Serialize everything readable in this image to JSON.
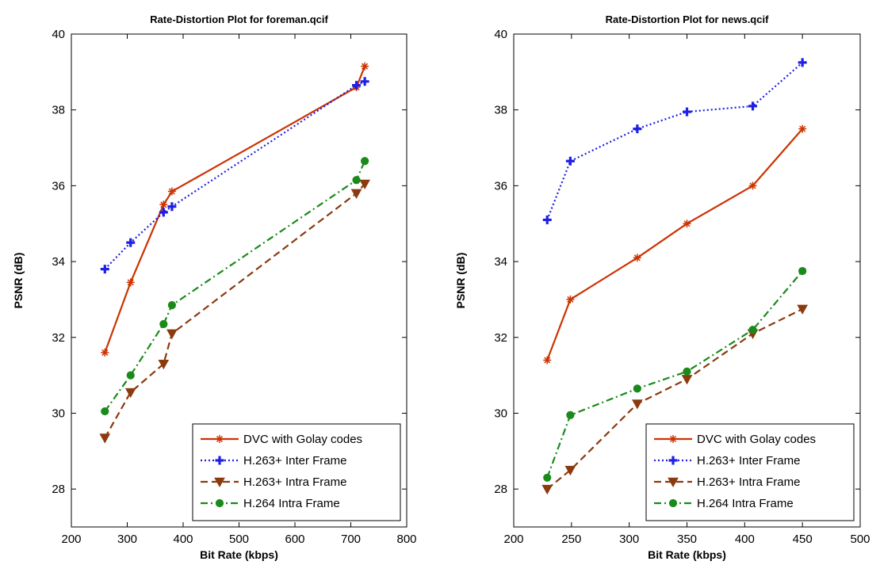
{
  "chart_data": [
    {
      "type": "line",
      "title": "Rate-Distortion Plot for foreman.qcif",
      "xlabel": "Bit Rate (kbps)",
      "ylabel": "PSNR (dB)",
      "xlim": [
        200,
        800
      ],
      "ylim": [
        27,
        40
      ],
      "xticks": [
        200,
        300,
        400,
        500,
        600,
        700,
        800
      ],
      "yticks": [
        28,
        30,
        32,
        34,
        36,
        38,
        40
      ],
      "legend_position": "bottom-right",
      "grid": false,
      "series": [
        {
          "name": "DVC with Golay codes",
          "color": "#cc3300",
          "dash": "solid",
          "marker": "star",
          "x": [
            260,
            306,
            365,
            380,
            710,
            725
          ],
          "y": [
            31.6,
            33.45,
            35.5,
            35.85,
            38.6,
            39.15
          ]
        },
        {
          "name": "H.263+ Inter Frame",
          "color": "#1f1fe6",
          "dash": "dotted",
          "marker": "plus",
          "x": [
            260,
            306,
            365,
            380,
            710,
            725
          ],
          "y": [
            33.8,
            34.5,
            35.3,
            35.45,
            38.65,
            38.75
          ]
        },
        {
          "name": "H.263+ Intra Frame",
          "color": "#8b3a0e",
          "dash": "dashed",
          "marker": "triangle-down",
          "x": [
            260,
            306,
            365,
            380,
            710,
            725
          ],
          "y": [
            29.35,
            30.55,
            31.3,
            32.1,
            35.8,
            36.05
          ]
        },
        {
          "name": "H.264  Intra Frame",
          "color": "#1a8a1a",
          "dash": "dashdot",
          "marker": "circle",
          "x": [
            260,
            306,
            365,
            380,
            710,
            725
          ],
          "y": [
            30.05,
            31.0,
            32.35,
            32.85,
            36.15,
            36.65
          ]
        }
      ]
    },
    {
      "type": "line",
      "title": "Rate-Distortion Plot for news.qcif",
      "xlabel": "Bit Rate (kbps)",
      "ylabel": "PSNR (dB)",
      "xlim": [
        200,
        500
      ],
      "ylim": [
        27,
        40
      ],
      "xticks": [
        200,
        250,
        300,
        350,
        400,
        450,
        500
      ],
      "yticks": [
        28,
        30,
        32,
        34,
        36,
        38,
        40
      ],
      "legend_position": "bottom-right",
      "grid": false,
      "series": [
        {
          "name": "DVC with Golay codes",
          "color": "#cc3300",
          "dash": "solid",
          "marker": "star",
          "x": [
            229,
            249,
            307,
            350,
            407,
            450
          ],
          "y": [
            31.4,
            33.0,
            34.1,
            35.0,
            36.0,
            37.5
          ]
        },
        {
          "name": "H.263+ Inter Frame",
          "color": "#1f1fe6",
          "dash": "dotted",
          "marker": "plus",
          "x": [
            229,
            249,
            307,
            350,
            407,
            450
          ],
          "y": [
            35.1,
            36.65,
            37.5,
            37.95,
            38.1,
            39.25
          ]
        },
        {
          "name": "H.263+ Intra Frame",
          "color": "#8b3a0e",
          "dash": "dashed",
          "marker": "triangle-down",
          "x": [
            229,
            249,
            307,
            350,
            407,
            450
          ],
          "y": [
            28.0,
            28.5,
            30.25,
            30.9,
            32.1,
            32.75
          ]
        },
        {
          "name": "H.264 Intra Frame",
          "color": "#1a8a1a",
          "dash": "dashdot",
          "marker": "circle",
          "x": [
            229,
            249,
            307,
            350,
            407,
            450
          ],
          "y": [
            28.3,
            29.95,
            30.65,
            31.1,
            32.2,
            33.75
          ]
        }
      ]
    }
  ]
}
